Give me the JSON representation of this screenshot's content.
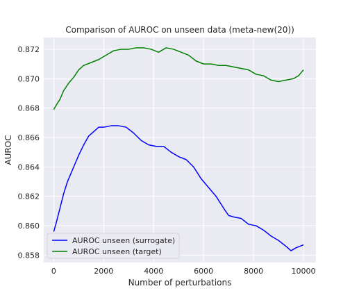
{
  "chart_data": {
    "type": "line",
    "title": "Comparison of AUROC on unseen data (meta-new(20))",
    "xlabel": "Number of perturbations",
    "ylabel": "AUROC",
    "xlim": [
      -400,
      10500
    ],
    "ylim": [
      0.8575,
      0.8728
    ],
    "xticks": [
      0,
      2000,
      4000,
      6000,
      8000,
      10000
    ],
    "yticks": [
      0.858,
      0.86,
      0.862,
      0.864,
      0.866,
      0.868,
      0.87,
      0.872
    ],
    "ytick_labels": [
      "0.858",
      "0.860",
      "0.862",
      "0.864",
      "0.866",
      "0.868",
      "0.870",
      "0.872"
    ],
    "grid": true,
    "legend_position": "lower-left",
    "series": [
      {
        "name": "AUROC unseen (surrogate)",
        "color": "#0000ff",
        "x": [
          0,
          100,
          250,
          400,
          550,
          700,
          850,
          1000,
          1200,
          1400,
          1600,
          1800,
          2000,
          2300,
          2600,
          2900,
          3200,
          3500,
          3800,
          4100,
          4400,
          4700,
          5000,
          5300,
          5600,
          5900,
          6200,
          6500,
          6800,
          7000,
          7200,
          7500,
          7800,
          8100,
          8400,
          8700,
          9000,
          9300,
          9500,
          9700,
          10000
        ],
        "values": [
          0.8596,
          0.8602,
          0.8612,
          0.8622,
          0.863,
          0.8636,
          0.8642,
          0.8648,
          0.8655,
          0.8661,
          0.8664,
          0.8667,
          0.8667,
          0.8668,
          0.8668,
          0.8667,
          0.8663,
          0.8658,
          0.8655,
          0.8654,
          0.8654,
          0.865,
          0.8647,
          0.8645,
          0.864,
          0.8632,
          0.8626,
          0.862,
          0.8612,
          0.8607,
          0.8606,
          0.8605,
          0.8601,
          0.86,
          0.8597,
          0.8593,
          0.859,
          0.8586,
          0.8583,
          0.8585,
          0.8587
        ]
      },
      {
        "name": "AUROC unseen (target)",
        "color": "#008000",
        "x": [
          0,
          100,
          250,
          400,
          600,
          800,
          1000,
          1200,
          1500,
          1800,
          2100,
          2400,
          2700,
          3000,
          3300,
          3600,
          3900,
          4200,
          4500,
          4800,
          5100,
          5400,
          5700,
          6000,
          6300,
          6600,
          6900,
          7200,
          7500,
          7800,
          8100,
          8400,
          8700,
          9000,
          9300,
          9600,
          9800,
          10000
        ],
        "values": [
          0.8679,
          0.8682,
          0.8686,
          0.8692,
          0.8697,
          0.8701,
          0.8706,
          0.8709,
          0.8711,
          0.8713,
          0.8716,
          0.8719,
          0.872,
          0.872,
          0.8721,
          0.8721,
          0.872,
          0.8718,
          0.8721,
          0.872,
          0.8718,
          0.8716,
          0.8712,
          0.871,
          0.871,
          0.8709,
          0.8709,
          0.8708,
          0.8707,
          0.8706,
          0.8703,
          0.8702,
          0.8699,
          0.8698,
          0.8699,
          0.87,
          0.8702,
          0.8706
        ]
      }
    ]
  }
}
